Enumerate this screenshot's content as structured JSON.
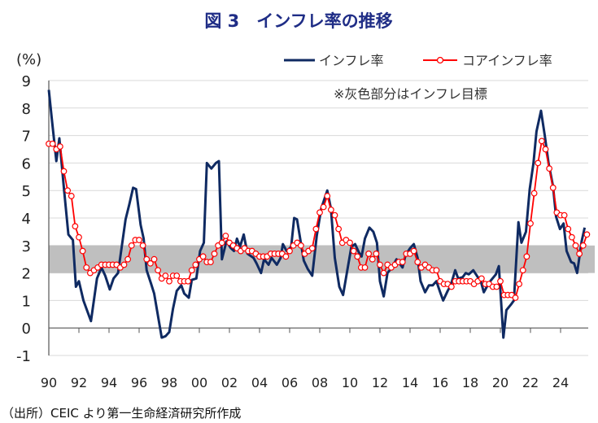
{
  "chart_data": {
    "type": "line",
    "title": "図 3　インフレ率の推移",
    "ylabel": "(%)",
    "xlabel": "",
    "ylim": [
      -1,
      9
    ],
    "xlim": [
      1990,
      2025.85
    ],
    "yticks": [
      "-1",
      "0",
      "1",
      "2",
      "3",
      "4",
      "5",
      "6",
      "7",
      "8",
      "9"
    ],
    "xticks": [
      "90",
      "92",
      "94",
      "96",
      "98",
      "00",
      "02",
      "04",
      "06",
      "08",
      "10",
      "12",
      "14",
      "16",
      "18",
      "20",
      "22",
      "24"
    ],
    "grid": true,
    "legend_placement": "top-right",
    "annotation": "※灰色部分はインフレ目標",
    "target_band": [
      2,
      3
    ],
    "colors": {
      "inflation": "#0f2a62",
      "core": "#ff0000",
      "band": "#bfbfbf",
      "negative_tick": "#ff0000"
    },
    "series": [
      {
        "name": "インフレ率",
        "x": [
          1990.0,
          1990.2,
          1990.5,
          1990.7,
          1991.0,
          1991.3,
          1991.6,
          1991.8,
          1992.0,
          1992.3,
          1992.8,
          1993.2,
          1993.5,
          1993.75,
          1994.05,
          1994.3,
          1994.6,
          1995.1,
          1995.35,
          1995.6,
          1995.8,
          1996.1,
          1996.3,
          1996.5,
          1996.8,
          1997.0,
          1997.5,
          1997.75,
          1998.0,
          1998.25,
          1998.5,
          1998.8,
          1999.0,
          1999.3,
          1999.5,
          1999.8,
          2000.05,
          2000.3,
          2000.5,
          2000.8,
          2001.1,
          2001.3,
          2001.5,
          2001.8,
          2002.1,
          2002.3,
          2002.5,
          2002.7,
          2002.95,
          2003.2,
          2003.6,
          2003.8,
          2004.1,
          2004.3,
          2004.6,
          2004.8,
          2005.15,
          2005.4,
          2005.55,
          2005.8,
          2006.1,
          2006.3,
          2006.49,
          2006.94,
          2007.2,
          2007.5,
          2007.8,
          2008.1,
          2008.5,
          2008.74,
          2009.0,
          2009.3,
          2009.55,
          2009.8,
          2010.1,
          2010.35,
          2010.6,
          2010.78,
          2011.0,
          2011.3,
          2011.56,
          2011.8,
          2012.0,
          2012.25,
          2012.5,
          2012.8,
          2013.1,
          2013.3,
          2013.5,
          2013.7,
          2014.0,
          2014.25,
          2014.5,
          2014.7,
          2015.0,
          2015.25,
          2015.5,
          2015.75,
          2016.0,
          2016.2,
          2016.5,
          2016.7,
          2017.0,
          2017.2,
          2017.5,
          2017.7,
          2017.9,
          2018.2,
          2018.5,
          2018.7,
          2018.9,
          2019.2,
          2019.4,
          2019.7,
          2019.9,
          2020.2,
          2020.4,
          2020.7,
          2020.9,
          2021.2,
          2021.4,
          2021.7,
          2021.95,
          2022.2,
          2022.4,
          2022.7,
          2022.95,
          2023.2,
          2023.5,
          2023.7,
          2023.96,
          2024.2,
          2024.4,
          2024.7,
          2024.9,
          2025.1,
          2025.4,
          2025.6
        ],
        "values": [
          8.66,
          7.6,
          6.07,
          6.9,
          5.1,
          3.4,
          3.2,
          1.5,
          1.7,
          1.0,
          0.25,
          1.8,
          2.2,
          1.9,
          1.4,
          1.8,
          2.0,
          3.95,
          4.5,
          5.1,
          5.05,
          3.75,
          3.25,
          2.1,
          1.6,
          1.25,
          -0.35,
          -0.3,
          -0.15,
          0.7,
          1.35,
          1.55,
          1.25,
          1.1,
          1.75,
          1.8,
          2.8,
          3.1,
          6.0,
          5.8,
          6.0,
          6.07,
          2.5,
          3.15,
          2.9,
          2.8,
          3.25,
          2.95,
          3.4,
          2.7,
          2.55,
          2.35,
          2.0,
          2.5,
          2.3,
          2.55,
          2.3,
          2.55,
          3.05,
          2.8,
          2.95,
          4.0,
          3.95,
          2.45,
          2.15,
          1.9,
          3.35,
          4.35,
          5.0,
          4.35,
          2.55,
          1.5,
          1.2,
          2.0,
          2.95,
          3.05,
          2.75,
          2.6,
          3.25,
          3.65,
          3.5,
          3.1,
          1.7,
          1.15,
          2.0,
          2.2,
          2.5,
          2.35,
          2.2,
          2.65,
          2.9,
          3.05,
          2.55,
          1.7,
          1.3,
          1.55,
          1.55,
          1.7,
          1.3,
          1.0,
          1.35,
          1.55,
          2.1,
          1.8,
          1.85,
          2.0,
          1.95,
          2.1,
          1.85,
          1.7,
          1.3,
          1.6,
          1.75,
          1.95,
          2.25,
          -0.35,
          0.65,
          0.85,
          1.0,
          3.85,
          3.1,
          3.5,
          5.05,
          6.0,
          7.15,
          7.9,
          7.0,
          6.0,
          5.15,
          4.05,
          3.6,
          3.8,
          2.8,
          2.4,
          2.35,
          2.0,
          3.15,
          3.65
        ]
      },
      {
        "name": "コアインフレ率",
        "x_start": 1990.0,
        "x_step": 0.25,
        "values": [
          6.7,
          6.7,
          6.5,
          6.6,
          5.7,
          5.0,
          4.8,
          3.7,
          3.3,
          2.8,
          2.2,
          2.0,
          2.1,
          2.2,
          2.3,
          2.3,
          2.3,
          2.3,
          2.3,
          2.2,
          2.3,
          2.5,
          3.0,
          3.2,
          3.2,
          3.0,
          2.5,
          2.35,
          2.5,
          2.1,
          1.8,
          1.9,
          1.7,
          1.9,
          1.9,
          1.7,
          1.7,
          1.7,
          2.1,
          2.3,
          2.5,
          2.6,
          2.4,
          2.4,
          2.7,
          3.0,
          3.1,
          3.35,
          3.1,
          3.0,
          2.9,
          2.8,
          2.9,
          2.8,
          2.8,
          2.7,
          2.6,
          2.6,
          2.6,
          2.7,
          2.7,
          2.7,
          2.7,
          2.6,
          2.8,
          3.0,
          3.1,
          3.0,
          2.7,
          2.8,
          2.9,
          3.6,
          4.2,
          4.4,
          4.8,
          4.3,
          4.1,
          3.6,
          3.1,
          3.2,
          3.1,
          2.8,
          2.6,
          2.2,
          2.2,
          2.7,
          2.5,
          2.7,
          2.3,
          2.0,
          2.3,
          2.2,
          2.3,
          2.4,
          2.4,
          2.7,
          2.7,
          2.8,
          2.4,
          2.2,
          2.3,
          2.2,
          2.1,
          2.1,
          1.7,
          1.6,
          1.6,
          1.5,
          1.7,
          1.7,
          1.7,
          1.7,
          1.7,
          1.6,
          1.7,
          1.8,
          1.6,
          1.6,
          1.5,
          1.5,
          1.7,
          1.2,
          1.2,
          1.2,
          1.1,
          1.6,
          2.1,
          2.6,
          3.8,
          4.9,
          6.0,
          6.8,
          6.5,
          5.8,
          5.1,
          4.2,
          4.1,
          4.1,
          3.6,
          3.3,
          3.0,
          2.7,
          3.0,
          3.4
        ]
      }
    ]
  },
  "source": "（出所）CEIC より第一生命経済研究所作成"
}
